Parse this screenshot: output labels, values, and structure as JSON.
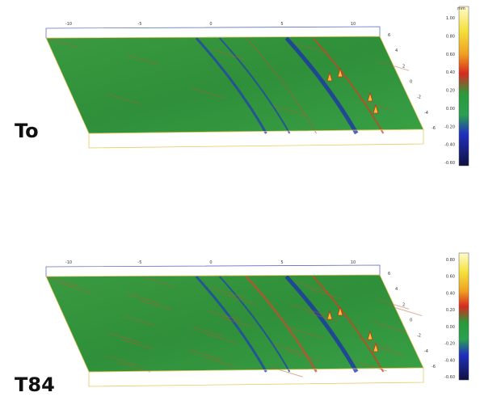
{
  "panels": [
    {
      "label": "To",
      "x_ticks": [
        "-10",
        "-5",
        "0",
        "5",
        "10"
      ],
      "y_ticks": [
        "6",
        "4",
        "2",
        "0",
        "-2",
        "-4",
        "-6"
      ],
      "colorbar": {
        "unit": "mm",
        "ticks": [
          "1.00",
          "0.80",
          "0.60",
          "0.40",
          "0.20",
          "0.00",
          "-0.20",
          "-0.40",
          "-0.60"
        ]
      }
    },
    {
      "label": "T84",
      "x_ticks": [
        "-10",
        "-5",
        "0",
        "5",
        "10"
      ],
      "y_ticks": [
        "6",
        "4",
        "2",
        "0",
        "-2",
        "-4",
        "-6"
      ],
      "colorbar": {
        "ticks": [
          "0.80",
          "0.60",
          "0.40",
          "0.20",
          "0.00",
          "-0.20",
          "-0.40",
          "-0.60"
        ]
      }
    }
  ]
}
